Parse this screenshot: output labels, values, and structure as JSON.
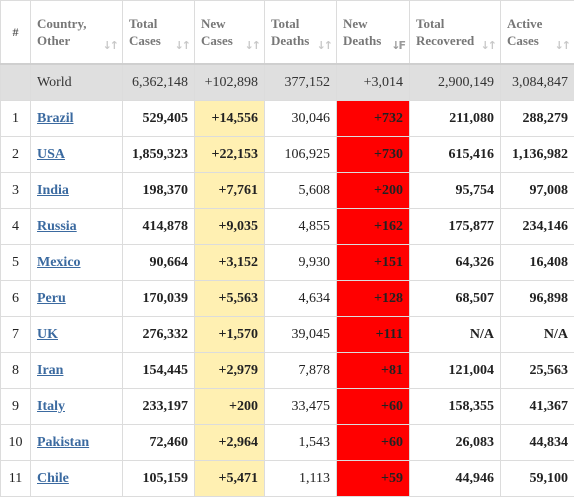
{
  "header": {
    "rank": "#",
    "country_l1": "Country,",
    "country_l2": "Other",
    "total_cases_l1": "Total",
    "total_cases_l2": "Cases",
    "new_cases_l1": "New",
    "new_cases_l2": "Cases",
    "total_deaths_l1": "Total",
    "total_deaths_l2": "Deaths",
    "new_deaths_l1": "New",
    "new_deaths_l2": "Deaths",
    "total_recovered_l1": "Total",
    "total_recovered_l2": "Recovered",
    "active_cases_l1": "Active",
    "active_cases_l2": "Cases",
    "sort_glyph": "↓↑",
    "sort_active_glyph": "↓F",
    "sorted_column": "New Deaths"
  },
  "world": {
    "label": "World",
    "total_cases": "6,362,148",
    "new_cases": "+102,898",
    "total_deaths": "377,152",
    "new_deaths": "+3,014",
    "total_recovered": "2,900,149",
    "active_cases": "3,084,847"
  },
  "rows": [
    {
      "rank": "1",
      "country": "Brazil",
      "total_cases": "529,405",
      "new_cases": "+14,556",
      "total_deaths": "30,046",
      "new_deaths": "+732",
      "total_recovered": "211,080",
      "active_cases": "288,279"
    },
    {
      "rank": "2",
      "country": "USA",
      "total_cases": "1,859,323",
      "new_cases": "+22,153",
      "total_deaths": "106,925",
      "new_deaths": "+730",
      "total_recovered": "615,416",
      "active_cases": "1,136,982"
    },
    {
      "rank": "3",
      "country": "India",
      "total_cases": "198,370",
      "new_cases": "+7,761",
      "total_deaths": "5,608",
      "new_deaths": "+200",
      "total_recovered": "95,754",
      "active_cases": "97,008"
    },
    {
      "rank": "4",
      "country": "Russia",
      "total_cases": "414,878",
      "new_cases": "+9,035",
      "total_deaths": "4,855",
      "new_deaths": "+162",
      "total_recovered": "175,877",
      "active_cases": "234,146"
    },
    {
      "rank": "5",
      "country": "Mexico",
      "total_cases": "90,664",
      "new_cases": "+3,152",
      "total_deaths": "9,930",
      "new_deaths": "+151",
      "total_recovered": "64,326",
      "active_cases": "16,408"
    },
    {
      "rank": "6",
      "country": "Peru",
      "total_cases": "170,039",
      "new_cases": "+5,563",
      "total_deaths": "4,634",
      "new_deaths": "+128",
      "total_recovered": "68,507",
      "active_cases": "96,898"
    },
    {
      "rank": "7",
      "country": "UK",
      "total_cases": "276,332",
      "new_cases": "+1,570",
      "total_deaths": "39,045",
      "new_deaths": "+111",
      "total_recovered": "N/A",
      "active_cases": "N/A"
    },
    {
      "rank": "8",
      "country": "Iran",
      "total_cases": "154,445",
      "new_cases": "+2,979",
      "total_deaths": "7,878",
      "new_deaths": "+81",
      "total_recovered": "121,004",
      "active_cases": "25,563"
    },
    {
      "rank": "9",
      "country": "Italy",
      "total_cases": "233,197",
      "new_cases": "+200",
      "total_deaths": "33,475",
      "new_deaths": "+60",
      "total_recovered": "158,355",
      "active_cases": "41,367"
    },
    {
      "rank": "10",
      "country": "Pakistan",
      "total_cases": "72,460",
      "new_cases": "+2,964",
      "total_deaths": "1,543",
      "new_deaths": "+60",
      "total_recovered": "26,083",
      "active_cases": "44,834"
    },
    {
      "rank": "11",
      "country": "Chile",
      "total_cases": "105,159",
      "new_cases": "+5,471",
      "total_deaths": "1,113",
      "new_deaths": "+59",
      "total_recovered": "44,946",
      "active_cases": "59,100"
    }
  ],
  "colors": {
    "new_cases_bg": "#fff0b2",
    "new_deaths_bg": "#ff0000",
    "world_row_bg": "#dfdfdf",
    "link": "#3b6aa0"
  }
}
